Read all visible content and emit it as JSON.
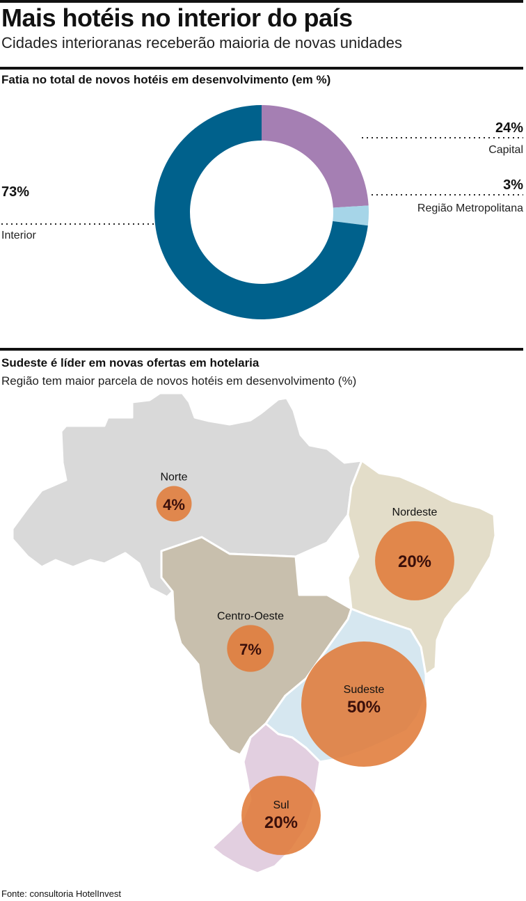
{
  "header": {
    "title": "Mais hotéis no interior do país",
    "subtitle": "Cidades interioranas receberão maioria de novas unidades"
  },
  "colors": {
    "capital": "#a57fb3",
    "regiao_metropolitana": "#a6d5e8",
    "interior": "#00618c",
    "bubble": "#e07b39",
    "norte": "#d9d9d9",
    "nordeste": "#e3ddc9",
    "centro_oeste": "#c8bfad",
    "sudeste": "#d6e7f0",
    "sul": "#e2cfe0"
  },
  "chart_data": [
    {
      "type": "pie",
      "donut": true,
      "title": "Fatia no total de novos hotéis em desenvolvimento (em %)",
      "slices": [
        {
          "label": "Capital",
          "value": 24,
          "value_label": "24%",
          "color": "#a57fb3"
        },
        {
          "label": "Região Metropolitana",
          "value": 3,
          "value_label": "3%",
          "color": "#a6d5e8"
        },
        {
          "label": "Interior",
          "value": 73,
          "value_label": "73%",
          "color": "#00618c"
        }
      ]
    },
    {
      "type": "bubble-map",
      "title": "Sudeste é líder em novas ofertas em hotelaria",
      "subtitle": "Região tem maior parcela de novos hotéis em desenvolvimento (%)",
      "regions": [
        {
          "label": "Norte",
          "value": 4,
          "value_label": "4%"
        },
        {
          "label": "Nordeste",
          "value": 20,
          "value_label": "20%"
        },
        {
          "label": "Centro-Oeste",
          "value": 7,
          "value_label": "7%"
        },
        {
          "label": "Sudeste",
          "value": 50,
          "value_label": "50%"
        },
        {
          "label": "Sul",
          "value": 20,
          "value_label": "20%"
        }
      ]
    }
  ],
  "footer": {
    "source": "Fonte: consultoria HotelInvest"
  }
}
